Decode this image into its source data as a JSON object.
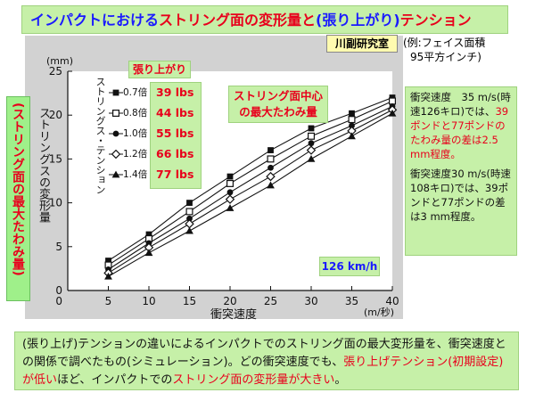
{
  "title": {
    "part1": "インパクトにおける",
    "part2": "ストリング面の変形量と",
    "part3": "(張り上がり)",
    "part4": "テンション"
  },
  "lab_label": "川副研究室",
  "example": {
    "line1": "(例:フェイス面積",
    "line2": "95平方インチ)"
  },
  "left_note": "(ストリング面の最大たわみ量)",
  "center_label": {
    "line1": "ストリング面中心",
    "line2": "の最大たわみ量"
  },
  "harigari_label": "張り上がり",
  "legend_title": "ストリングス・テンション",
  "speed_tag": "126 km/h",
  "right_note": {
    "p1_a": "衝突速度　35 m/s(時速126キロ)では、",
    "p1_b": "39ポンドと77ポンドのたわみ量の差は2.5 mm程度。",
    "p2": "衝突速度30 m/s(時速108キロ)では、39ポンドと77ポンドの差は3 mm程度。"
  },
  "bottom_note": {
    "a": "(張り上げ)テンションの違いによるインパクトでのストリング面の最大変形量を、衝突速度との関係で調べたもの(シミュレーション)。どの衝突速度でも、",
    "b": "張り上げテンション(初期設定)が低い",
    "c": "ほど、インパクトでの",
    "d": "ストリング面の変形量が大きい",
    "e": "。"
  },
  "chart_data": {
    "type": "line",
    "ylabel": "ストリングスの変形量",
    "y_unit": "(mm)",
    "xlabel": "衝突速度",
    "x_unit": "(m/秒)",
    "x": [
      5,
      10,
      15,
      20,
      25,
      30,
      35,
      40
    ],
    "xlim": [
      0,
      40
    ],
    "ylim": [
      0,
      25
    ],
    "x_ticks": [
      5,
      10,
      15,
      20,
      25,
      30,
      35,
      40
    ],
    "y_ticks": [
      0,
      5,
      10,
      15,
      20,
      25
    ],
    "series": [
      {
        "name": "0.7倍",
        "lbs": "39 lbs",
        "marker": "square-filled",
        "values": [
          3.4,
          6.4,
          10.0,
          13.0,
          16.0,
          18.5,
          20.2,
          22.0
        ]
      },
      {
        "name": "0.8倍",
        "lbs": "44 lbs",
        "marker": "square-open",
        "values": [
          2.9,
          5.9,
          9.0,
          12.2,
          15.0,
          17.6,
          19.5,
          21.6
        ]
      },
      {
        "name": "1.0倍",
        "lbs": "55 lbs",
        "marker": "circle-filled",
        "values": [
          2.4,
          5.4,
          8.2,
          11.2,
          14.0,
          16.8,
          18.8,
          21.0
        ]
      },
      {
        "name": "1.2倍",
        "lbs": "66 lbs",
        "marker": "diamond-open",
        "values": [
          2.0,
          4.9,
          7.6,
          10.4,
          13.0,
          16.0,
          18.2,
          20.6
        ]
      },
      {
        "name": "1.4倍",
        "lbs": "77 lbs",
        "marker": "triangle-filled",
        "values": [
          1.6,
          4.3,
          6.8,
          9.4,
          12.0,
          15.0,
          17.6,
          20.2
        ]
      }
    ],
    "colors": {
      "line": "#111111",
      "panel_bg": "#d2d2d2",
      "plot_bg": "#ffffff"
    }
  }
}
